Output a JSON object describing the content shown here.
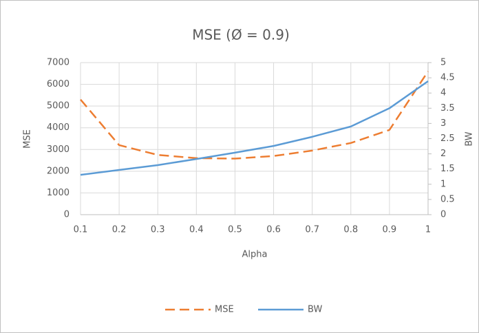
{
  "chart_data": {
    "type": "line",
    "title": "MSE (Ø = 0.9)",
    "x_label": "Alpha",
    "y_label": "MSE",
    "y2_label": "BW",
    "x": [
      0.1,
      0.2,
      0.3,
      0.4,
      0.5,
      0.6,
      0.7,
      0.8,
      0.9,
      1
    ],
    "series": [
      {
        "name": "MSE",
        "color": "#ed7d31",
        "dash": true,
        "values": [
          5300,
          3200,
          2750,
          2600,
          2580,
          2700,
          2950,
          3300,
          3900,
          6600
        ]
      },
      {
        "name": "BW",
        "color": "#5b9bd5",
        "axis": "y2",
        "values": [
          1.31,
          1.47,
          1.63,
          1.83,
          2.04,
          2.26,
          2.56,
          2.9,
          3.5,
          4.39
        ]
      }
    ],
    "xlim": [
      0.1,
      1
    ],
    "xticks": [
      0.1,
      0.2,
      0.3,
      0.4,
      0.5,
      0.6,
      0.7,
      0.8,
      0.9,
      1
    ],
    "ylim": [
      0,
      7000
    ],
    "yticks": [
      0,
      1000,
      2000,
      3000,
      4000,
      5000,
      6000,
      7000
    ],
    "y2lim": [
      0,
      5
    ],
    "y2ticks": [
      0,
      0.5,
      1,
      1.5,
      2,
      2.5,
      3,
      3.5,
      4,
      4.5,
      5
    ],
    "grid": true,
    "legend": "bottom"
  }
}
